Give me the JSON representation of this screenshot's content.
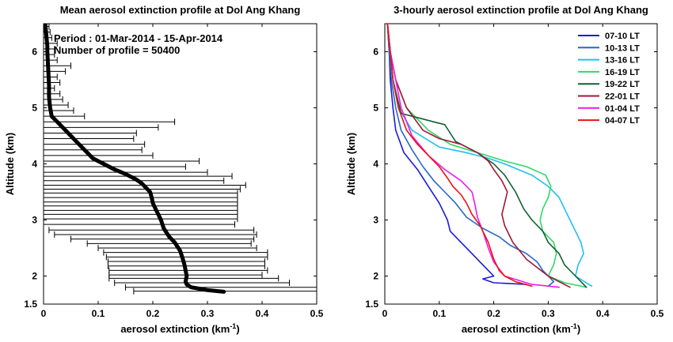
{
  "chart_data": [
    {
      "type": "line",
      "title": "Mean aerosol extinction profile at Dol Ang Khang",
      "xlabel": "aerosol extinction (km",
      "xlabel_sup": "-1",
      "xlabel_end": ")",
      "ylabel": "Altitude (km)",
      "xlim": [
        0,
        0.5
      ],
      "ylim": [
        1.5,
        6.5
      ],
      "xticks": [
        "0",
        "0.1",
        "0.2",
        "0.3",
        "0.4",
        "0.5"
      ],
      "yticks": [
        "1.5",
        "2",
        "3",
        "4",
        "5",
        "6"
      ],
      "annotation": [
        "Period : 01-Mar-2014 - 15-Apr-2014",
        "Number of profile = 50400"
      ],
      "series": [
        {
          "x": [
            0.33,
            0.3,
            0.27,
            0.262,
            0.26,
            0.262,
            0.26,
            0.258,
            0.255,
            0.25,
            0.24,
            0.23,
            0.22,
            0.215,
            0.21,
            0.205,
            0.2,
            0.198,
            0.195,
            0.19,
            0.18,
            0.17,
            0.15,
            0.13,
            0.11,
            0.09,
            0.08,
            0.07,
            0.06,
            0.05,
            0.04,
            0.025,
            0.015,
            0.012,
            0.01,
            0.01,
            0.009,
            0.008,
            0.007,
            0.007,
            0.006,
            0.005,
            0.004,
            0.003
          ],
          "y": [
            1.72,
            1.75,
            1.8,
            1.85,
            1.9,
            2.0,
            2.1,
            2.2,
            2.3,
            2.45,
            2.6,
            2.7,
            2.85,
            3.0,
            3.1,
            3.2,
            3.3,
            3.4,
            3.5,
            3.55,
            3.65,
            3.72,
            3.82,
            3.9,
            4.0,
            4.1,
            4.2,
            4.3,
            4.4,
            4.5,
            4.6,
            4.75,
            4.85,
            5.0,
            5.2,
            5.4,
            5.6,
            5.8,
            6.0,
            6.1,
            6.2,
            6.3,
            6.4,
            6.5
          ],
          "errors": [
            {
              "y": 6.45,
              "lo": 0.0,
              "hi": 0.01
            },
            {
              "y": 6.35,
              "lo": 0.0,
              "hi": 0.012
            },
            {
              "y": 6.25,
              "lo": 0.0,
              "hi": 0.015
            },
            {
              "y": 6.15,
              "lo": 0.0,
              "hi": 0.025
            },
            {
              "y": 6.05,
              "lo": 0.0,
              "hi": 0.02
            },
            {
              "y": 5.95,
              "lo": 0.0,
              "hi": 0.02
            },
            {
              "y": 5.85,
              "lo": 0.0,
              "hi": 0.025
            },
            {
              "y": 5.75,
              "lo": 0.0,
              "hi": 0.05
            },
            {
              "y": 5.65,
              "lo": 0.0,
              "hi": 0.04
            },
            {
              "y": 5.55,
              "lo": 0.0,
              "hi": 0.025
            },
            {
              "y": 5.45,
              "lo": 0.0,
              "hi": 0.03
            },
            {
              "y": 5.35,
              "lo": 0.0,
              "hi": 0.02
            },
            {
              "y": 5.25,
              "lo": 0.0,
              "hi": 0.03
            },
            {
              "y": 5.15,
              "lo": 0.0,
              "hi": 0.035
            },
            {
              "y": 5.05,
              "lo": 0.0,
              "hi": 0.045
            },
            {
              "y": 4.95,
              "lo": 0.0,
              "hi": 0.055
            },
            {
              "y": 4.85,
              "lo": 0.0,
              "hi": 0.075
            },
            {
              "y": 4.75,
              "lo": 0.0,
              "hi": 0.24
            },
            {
              "y": 4.65,
              "lo": 0.0,
              "hi": 0.21
            },
            {
              "y": 4.55,
              "lo": 0.0,
              "hi": 0.17
            },
            {
              "y": 4.45,
              "lo": 0.0,
              "hi": 0.165
            },
            {
              "y": 4.35,
              "lo": 0.0,
              "hi": 0.185
            },
            {
              "y": 4.25,
              "lo": 0.0,
              "hi": 0.18
            },
            {
              "y": 4.15,
              "lo": 0.0,
              "hi": 0.2
            },
            {
              "y": 4.05,
              "lo": 0.0,
              "hi": 0.285
            },
            {
              "y": 3.95,
              "lo": 0.0,
              "hi": 0.26
            },
            {
              "y": 3.85,
              "lo": 0.0,
              "hi": 0.3
            },
            {
              "y": 3.78,
              "lo": 0.0,
              "hi": 0.345
            },
            {
              "y": 3.7,
              "lo": 0.0,
              "hi": 0.33
            },
            {
              "y": 3.62,
              "lo": 0.0,
              "hi": 0.37
            },
            {
              "y": 3.55,
              "lo": 0.0,
              "hi": 0.36
            },
            {
              "y": 3.48,
              "lo": 0.0,
              "hi": 0.355
            },
            {
              "y": 3.4,
              "lo": 0.0,
              "hi": 0.355
            },
            {
              "y": 3.32,
              "lo": 0.0,
              "hi": 0.355
            },
            {
              "y": 3.25,
              "lo": 0.0,
              "hi": 0.355
            },
            {
              "y": 3.17,
              "lo": 0.0,
              "hi": 0.355
            },
            {
              "y": 3.1,
              "lo": 0.0,
              "hi": 0.355
            },
            {
              "y": 3.02,
              "lo": 0.0,
              "hi": 0.355
            },
            {
              "y": 2.92,
              "lo": 0.0,
              "hi": 0.35
            },
            {
              "y": 2.82,
              "lo": 0.01,
              "hi": 0.385
            },
            {
              "y": 2.74,
              "lo": 0.02,
              "hi": 0.39
            },
            {
              "y": 2.66,
              "lo": 0.05,
              "hi": 0.385
            },
            {
              "y": 2.58,
              "lo": 0.08,
              "hi": 0.38
            },
            {
              "y": 2.5,
              "lo": 0.1,
              "hi": 0.39
            },
            {
              "y": 2.42,
              "lo": 0.11,
              "hi": 0.41
            },
            {
              "y": 2.34,
              "lo": 0.115,
              "hi": 0.41
            },
            {
              "y": 2.26,
              "lo": 0.118,
              "hi": 0.405
            },
            {
              "y": 2.18,
              "lo": 0.118,
              "hi": 0.405
            },
            {
              "y": 2.1,
              "lo": 0.12,
              "hi": 0.41
            },
            {
              "y": 2.02,
              "lo": 0.12,
              "hi": 0.4
            },
            {
              "y": 1.96,
              "lo": 0.12,
              "hi": 0.43
            },
            {
              "y": 1.88,
              "lo": 0.13,
              "hi": 0.45
            },
            {
              "y": 1.8,
              "lo": 0.15,
              "hi": 0.5
            },
            {
              "y": 1.73,
              "lo": 0.165,
              "hi": 0.5
            }
          ]
        }
      ]
    },
    {
      "type": "line",
      "title": "3-hourly aerosol extinction profile at Dol Ang Khang",
      "xlabel": "aerosol extinction (km",
      "xlabel_sup": "-1",
      "xlabel_end": ")",
      "ylabel": "Altitude (km)",
      "xlim": [
        0,
        0.5
      ],
      "ylim": [
        1.5,
        6.5
      ],
      "xticks": [
        "0",
        "0.1",
        "0.2",
        "0.3",
        "0.4",
        "0.5"
      ],
      "yticks": [
        "1.5",
        "2",
        "3",
        "4",
        "5",
        "6"
      ],
      "legend": "top-right",
      "series": [
        {
          "name": "07-10 LT",
          "color": "#1a1adc",
          "x": [
            0.005,
            0.008,
            0.01,
            0.015,
            0.02,
            0.035,
            0.06,
            0.08,
            0.1,
            0.115,
            0.12,
            0.14,
            0.16,
            0.175,
            0.19,
            0.2,
            0.18,
            0.2,
            0.26
          ],
          "y": [
            6.5,
            6.0,
            5.5,
            5.0,
            4.6,
            4.2,
            3.9,
            3.6,
            3.3,
            3.0,
            2.8,
            2.6,
            2.4,
            2.25,
            2.1,
            2.0,
            1.95,
            1.88,
            1.85
          ]
        },
        {
          "name": "10-13 LT",
          "color": "#2468c8",
          "x": [
            0.005,
            0.008,
            0.012,
            0.02,
            0.03,
            0.05,
            0.07,
            0.09,
            0.11,
            0.13,
            0.15,
            0.18,
            0.21,
            0.23,
            0.26,
            0.28,
            0.29,
            0.3,
            0.31,
            0.3
          ],
          "y": [
            6.5,
            6.0,
            5.5,
            5.0,
            4.6,
            4.25,
            3.95,
            3.7,
            3.5,
            3.3,
            3.05,
            2.85,
            2.7,
            2.55,
            2.4,
            2.25,
            2.1,
            2.0,
            1.9,
            1.82
          ]
        },
        {
          "name": "13-16 LT",
          "color": "#20c0f0",
          "x": [
            0.005,
            0.01,
            0.015,
            0.025,
            0.05,
            0.1,
            0.15,
            0.19,
            0.22,
            0.245,
            0.27,
            0.3,
            0.32,
            0.33,
            0.34,
            0.35,
            0.36,
            0.365,
            0.355,
            0.35,
            0.38
          ],
          "y": [
            6.5,
            6.0,
            5.5,
            5.0,
            4.6,
            4.3,
            4.2,
            4.1,
            4.0,
            3.9,
            3.8,
            3.6,
            3.4,
            3.2,
            3.0,
            2.8,
            2.6,
            2.4,
            2.2,
            2.0,
            1.82
          ]
        },
        {
          "name": "16-19 LT",
          "color": "#30d868",
          "x": [
            0.005,
            0.01,
            0.02,
            0.04,
            0.08,
            0.12,
            0.17,
            0.22,
            0.26,
            0.295,
            0.305,
            0.3,
            0.29,
            0.285,
            0.29,
            0.31,
            0.315,
            0.31,
            0.3,
            0.33,
            0.37
          ],
          "y": [
            6.5,
            6.0,
            5.5,
            5.0,
            4.6,
            4.35,
            4.2,
            4.05,
            3.95,
            3.8,
            3.6,
            3.4,
            3.2,
            3.0,
            2.8,
            2.6,
            2.4,
            2.2,
            2.0,
            1.88,
            1.8
          ]
        },
        {
          "name": "19-22 LT",
          "color": "#106030",
          "x": [
            0.005,
            0.01,
            0.015,
            0.03,
            0.07,
            0.09,
            0.11,
            0.12,
            0.13,
            0.17,
            0.2,
            0.22,
            0.24,
            0.255,
            0.27,
            0.29,
            0.3,
            0.32,
            0.33,
            0.35,
            0.37
          ],
          "y": [
            6.5,
            6.0,
            5.5,
            4.9,
            4.8,
            4.75,
            4.7,
            4.55,
            4.4,
            4.2,
            4.0,
            3.8,
            3.5,
            3.2,
            3.0,
            2.8,
            2.6,
            2.4,
            2.2,
            2.0,
            1.8
          ]
        },
        {
          "name": "22-01 LT",
          "color": "#a01838",
          "x": [
            0.005,
            0.01,
            0.02,
            0.04,
            0.07,
            0.1,
            0.14,
            0.17,
            0.19,
            0.2,
            0.215,
            0.225,
            0.22,
            0.215,
            0.22,
            0.235,
            0.26,
            0.3,
            0.34
          ],
          "y": [
            6.5,
            6.0,
            5.5,
            5.0,
            4.6,
            4.45,
            4.35,
            4.2,
            4.05,
            3.9,
            3.7,
            3.5,
            3.3,
            3.1,
            2.9,
            2.6,
            2.3,
            2.0,
            1.8
          ]
        },
        {
          "name": "01-04 LT",
          "color": "#ee18ee",
          "x": [
            0.005,
            0.01,
            0.02,
            0.03,
            0.05,
            0.08,
            0.11,
            0.14,
            0.16,
            0.165,
            0.17,
            0.18,
            0.19,
            0.2,
            0.22,
            0.27,
            0.32
          ],
          "y": [
            6.5,
            6.0,
            5.5,
            5.0,
            4.5,
            4.15,
            3.9,
            3.7,
            3.5,
            3.3,
            3.05,
            2.8,
            2.5,
            2.25,
            2.0,
            1.85,
            1.8
          ]
        },
        {
          "name": "04-07 LT",
          "color": "#ee1010",
          "x": [
            0.005,
            0.01,
            0.015,
            0.025,
            0.04,
            0.06,
            0.08,
            0.1,
            0.115,
            0.125,
            0.14,
            0.15,
            0.16,
            0.175,
            0.19,
            0.2,
            0.21,
            0.22,
            0.24,
            0.27
          ],
          "y": [
            6.5,
            6.0,
            5.5,
            5.0,
            4.6,
            4.35,
            4.15,
            3.95,
            3.75,
            3.6,
            3.45,
            3.3,
            3.1,
            2.9,
            2.6,
            2.3,
            2.1,
            2.0,
            1.9,
            1.82
          ]
        }
      ]
    }
  ]
}
